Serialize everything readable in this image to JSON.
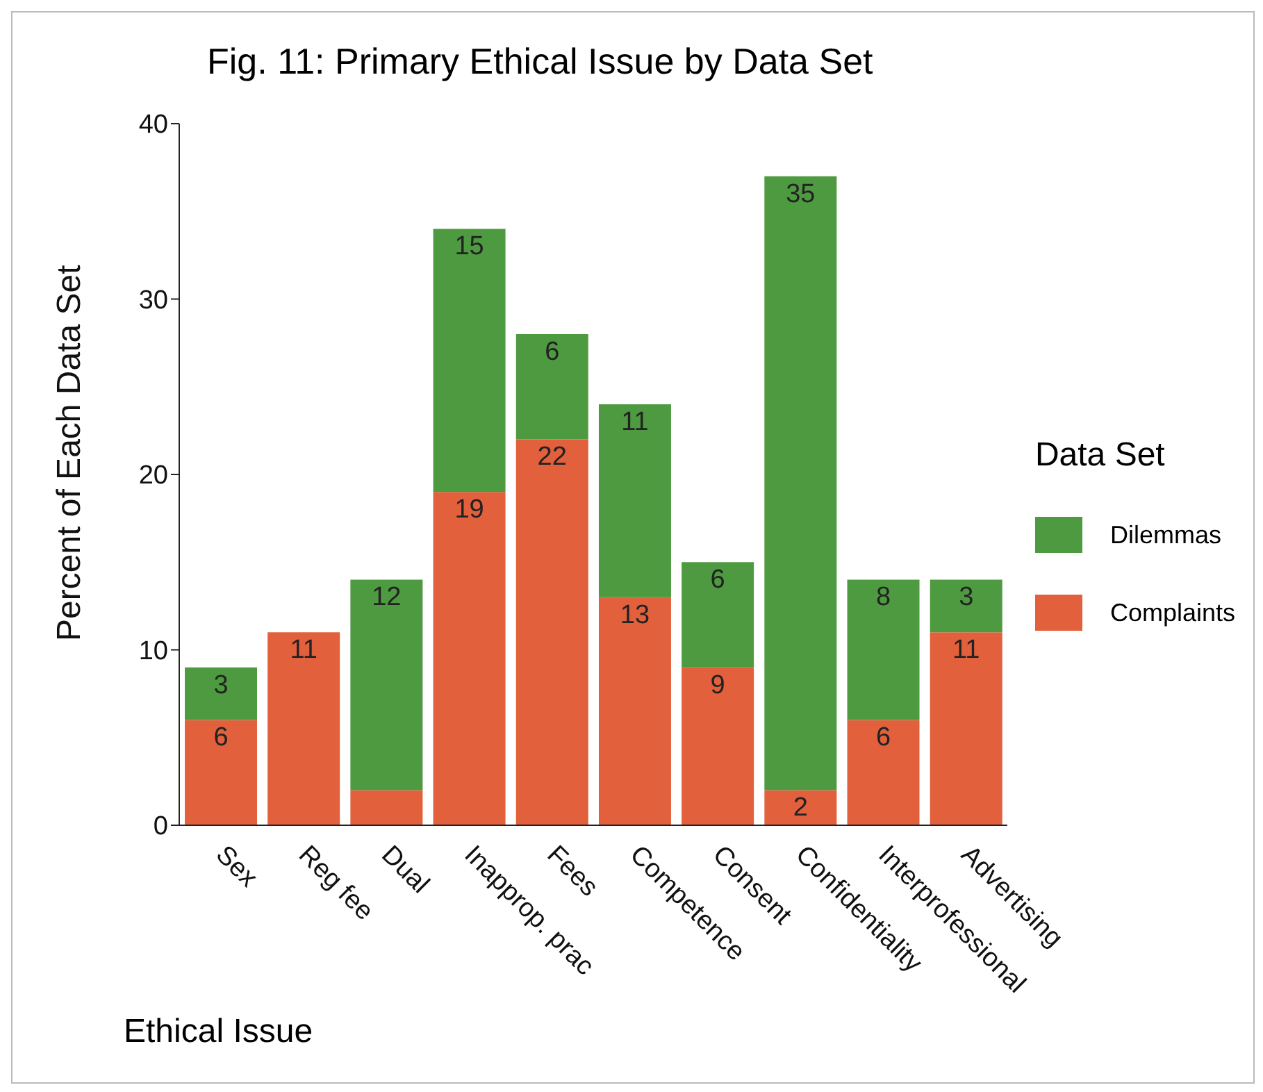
{
  "chart_data": {
    "type": "bar",
    "title": "Fig.  11: Primary Ethical Issue by Data Set",
    "xlabel": "Ethical Issue",
    "ylabel": "Percent of Each Data Set",
    "legend_title": "Data Set",
    "categories": [
      "Sex",
      "Reg fee",
      "Dual",
      "Inapprop. prac",
      "Fees",
      "Competence",
      "Consent",
      "Confidentiality",
      "Interprofessional",
      "Advertising"
    ],
    "stacked": true,
    "ylim": [
      0,
      40
    ],
    "yticks": [
      0,
      10,
      20,
      30,
      40
    ],
    "legend": "right",
    "series": [
      {
        "name": "Complaints",
        "color": "#e2603c",
        "values": [
          6,
          11,
          2,
          19,
          22,
          13,
          9,
          2,
          6,
          11
        ],
        "value_labels": [
          "6",
          "11",
          null,
          "19",
          "22",
          "13",
          "9",
          "2",
          "6",
          "11"
        ]
      },
      {
        "name": "Dilemmas",
        "color": "#4e9a40",
        "values": [
          3,
          null,
          12,
          15,
          6,
          11,
          6,
          35,
          8,
          3
        ],
        "value_labels": [
          "3",
          null,
          "12",
          "15",
          "6",
          "11",
          "6",
          "35",
          "8",
          "3"
        ]
      }
    ]
  }
}
